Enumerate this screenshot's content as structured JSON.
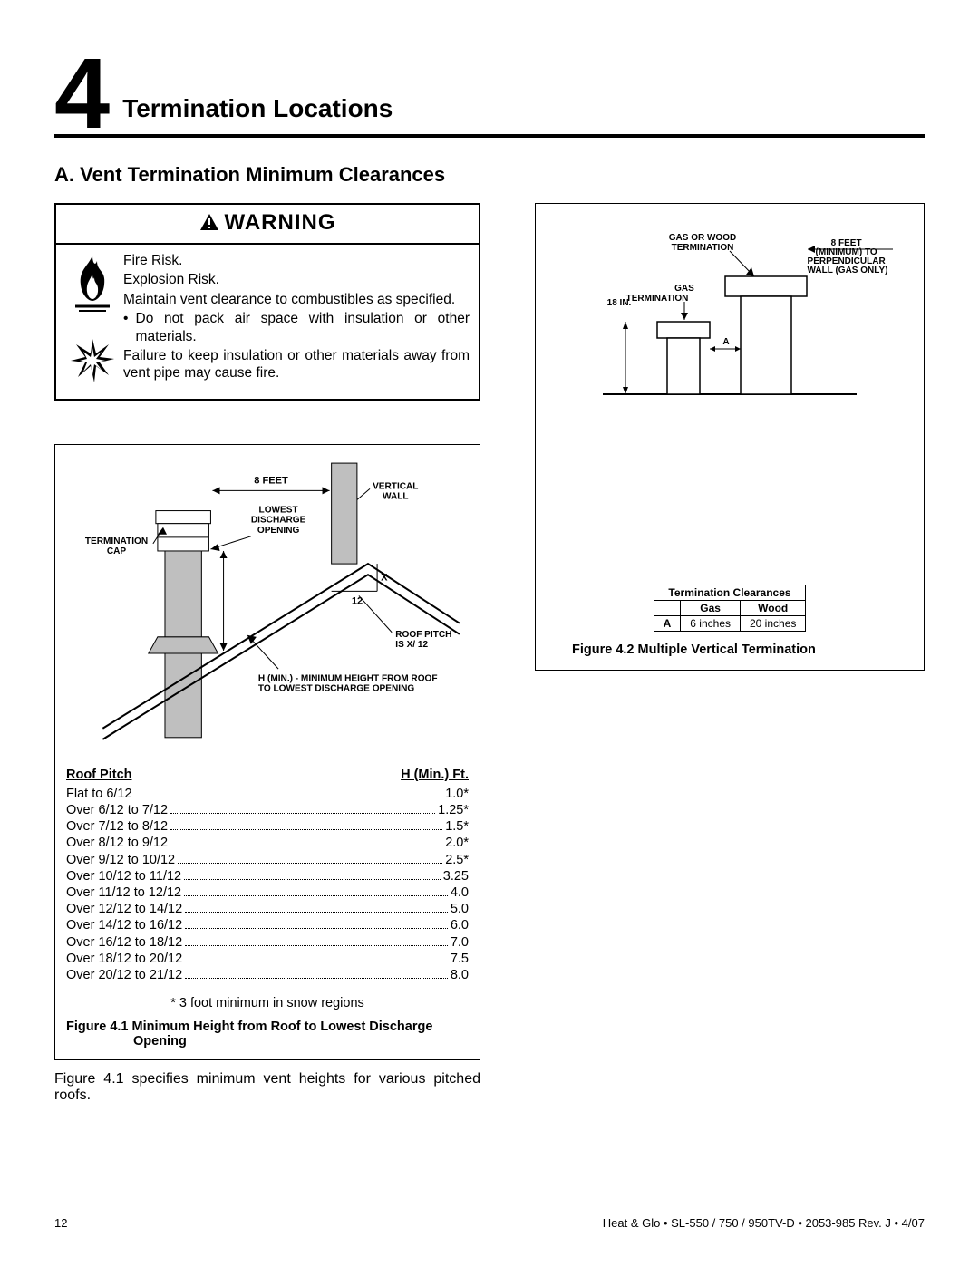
{
  "chapter_number": "4",
  "chapter_title": "Termination Locations",
  "subheading": "A.  Vent Termination Minimum Clearances",
  "warning": {
    "title": "WARNING",
    "line1": "Fire Risk.",
    "line2": "Explosion Risk.",
    "line3": "Maintain vent clearance to combustibles as specified.",
    "bullet": "Do not pack air space with insulation or other materials.",
    "line4": "Failure to keep insulation or other materials away from vent pipe may cause fire."
  },
  "figure41": {
    "labels": {
      "eight_feet": "8 FEET",
      "vertical_wall": "VERTICAL WALL",
      "lowest_discharge": "LOWEST DISCHARGE OPENING",
      "termination_cap": "TERMINATION CAP",
      "x": "X",
      "twelve": "12",
      "roof_pitch": "ROOF PITCH IS  X/ 12",
      "hmin": "H (MIN.) - MINIMUM HEIGHT FROM ROOF TO LOWEST DISCHARGE OPENING"
    },
    "table_head_left": "Roof Pitch",
    "table_head_right": "H (Min.)  Ft.",
    "rows": [
      {
        "pitch": "Flat to 6/12",
        "h": "1.0*"
      },
      {
        "pitch": "Over 6/12 to 7/12",
        "h": "1.25*"
      },
      {
        "pitch": "Over 7/12 to 8/12",
        "h": "1.5*"
      },
      {
        "pitch": "Over 8/12 to 9/12",
        "h": "2.0*"
      },
      {
        "pitch": "Over 9/12 to 10/12",
        "h": "2.5*"
      },
      {
        "pitch": "Over 10/12 to 11/12",
        "h": "3.25"
      },
      {
        "pitch": "Over 11/12 to 12/12",
        "h": "4.0"
      },
      {
        "pitch": "Over 12/12 to 14/12",
        "h": "5.0"
      },
      {
        "pitch": "Over 14/12 to 16/12",
        "h": "6.0"
      },
      {
        "pitch": "Over 16/12 to 18/12",
        "h": "7.0"
      },
      {
        "pitch": "Over 18/12 to 20/12",
        "h": "7.5"
      },
      {
        "pitch": "Over 20/12 to 21/12",
        "h": "8.0"
      }
    ],
    "snow_note": "* 3 foot minimum in snow regions",
    "caption_a": "Figure 4.1  Minimum Height from Roof to Lowest Discharge",
    "caption_b": "Opening",
    "below": "Figure 4.1 specifies minimum vent heights for various pitched roofs."
  },
  "figure42": {
    "labels": {
      "gas_or_wood": "GAS OR WOOD TERMINATION",
      "eight_feet": "8 FEET (MINIMUM) TO PERPENDICULAR WALL (GAS ONLY)",
      "gas_termination": "GAS TERMINATION",
      "eighteen": "18 IN.",
      "a": "A"
    },
    "table_title": "Termination Clearances",
    "col_gas": "Gas",
    "col_wood": "Wood",
    "row_label": "A",
    "gas_val": "6 inches",
    "wood_val": "20 inches",
    "caption": "Figure 4.2  Multiple Vertical Termination"
  },
  "footer": {
    "page": "12",
    "text": "Heat & Glo  •  SL-550 / 750 / 950TV-D  •  2053-985 Rev. J  •  4/07"
  }
}
